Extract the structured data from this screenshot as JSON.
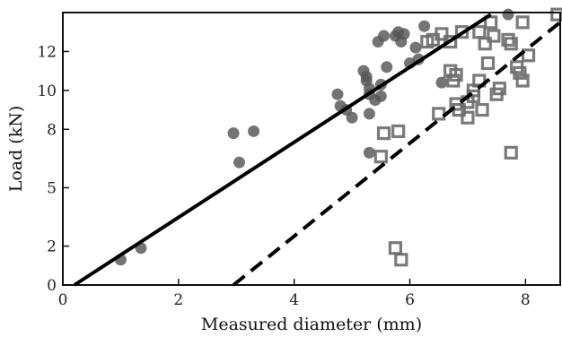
{
  "chart_data": {
    "type": "scatter",
    "title": "",
    "xlabel": "Measured diameter (mm)",
    "ylabel": "Load (kN)",
    "xlim": [
      0,
      8.6
    ],
    "ylim": [
      0,
      14.0
    ],
    "x_ticks": [
      0,
      2,
      4,
      6,
      8
    ],
    "y_ticks": [
      0,
      2,
      5,
      8,
      10,
      12
    ],
    "y_tick_labels": [
      "0",
      "2",
      "5",
      "8",
      "10",
      "12"
    ],
    "grid": false,
    "legend": null,
    "colors": {
      "circles": "#555555",
      "squares": "#6b6b6b",
      "lines": "#000000"
    },
    "series": [
      {
        "marker": "circle",
        "points": [
          [
            1.0,
            1.3
          ],
          [
            1.35,
            1.9
          ],
          [
            2.95,
            7.8
          ],
          [
            3.05,
            6.3
          ],
          [
            3.3,
            7.9
          ],
          [
            4.75,
            9.8
          ],
          [
            4.8,
            9.2
          ],
          [
            4.9,
            9.0
          ],
          [
            5.0,
            8.6
          ],
          [
            5.2,
            11.0
          ],
          [
            5.25,
            10.7
          ],
          [
            5.25,
            10.5
          ],
          [
            5.3,
            10.1
          ],
          [
            5.3,
            9.8
          ],
          [
            5.3,
            8.8
          ],
          [
            5.3,
            6.8
          ],
          [
            5.4,
            9.5
          ],
          [
            5.45,
            12.5
          ],
          [
            5.5,
            10.3
          ],
          [
            5.5,
            9.7
          ],
          [
            5.55,
            12.8
          ],
          [
            5.6,
            11.2
          ],
          [
            5.75,
            12.8
          ],
          [
            5.8,
            13.0
          ],
          [
            5.85,
            12.5
          ],
          [
            5.9,
            12.9
          ],
          [
            6.0,
            11.4
          ],
          [
            6.1,
            12.2
          ],
          [
            6.15,
            11.6
          ],
          [
            6.25,
            13.3
          ],
          [
            6.55,
            10.4
          ],
          [
            7.7,
            13.9
          ]
        ]
      },
      {
        "marker": "square",
        "points": [
          [
            5.5,
            6.6
          ],
          [
            5.55,
            7.8
          ],
          [
            5.75,
            1.9
          ],
          [
            5.8,
            7.9
          ],
          [
            5.85,
            1.3
          ],
          [
            6.3,
            12.5
          ],
          [
            6.4,
            12.6
          ],
          [
            6.5,
            8.8
          ],
          [
            6.55,
            12.9
          ],
          [
            6.7,
            11.0
          ],
          [
            6.7,
            12.5
          ],
          [
            6.75,
            10.5
          ],
          [
            6.8,
            10.8
          ],
          [
            6.8,
            9.3
          ],
          [
            6.85,
            9.0
          ],
          [
            6.9,
            13.0
          ],
          [
            7.0,
            9.4
          ],
          [
            7.0,
            8.6
          ],
          [
            7.1,
            9.7
          ],
          [
            7.1,
            10.0
          ],
          [
            7.2,
            10.5
          ],
          [
            7.2,
            13.0
          ],
          [
            7.25,
            9.0
          ],
          [
            7.3,
            12.4
          ],
          [
            7.35,
            11.4
          ],
          [
            7.4,
            13.5
          ],
          [
            7.45,
            12.8
          ],
          [
            7.5,
            9.8
          ],
          [
            7.55,
            10.1
          ],
          [
            7.7,
            12.6
          ],
          [
            7.75,
            12.4
          ],
          [
            7.75,
            6.8
          ],
          [
            7.85,
            11.2
          ],
          [
            7.9,
            10.9
          ],
          [
            7.95,
            13.5
          ],
          [
            7.95,
            10.5
          ],
          [
            8.05,
            11.8
          ],
          [
            8.55,
            13.9
          ]
        ]
      }
    ],
    "lines": [
      {
        "style": "solid",
        "from": [
          0.2,
          0.0
        ],
        "to": [
          7.4,
          13.9
        ]
      },
      {
        "style": "dashed",
        "from": [
          2.95,
          0.0
        ],
        "to": [
          8.6,
          13.5
        ]
      }
    ]
  }
}
